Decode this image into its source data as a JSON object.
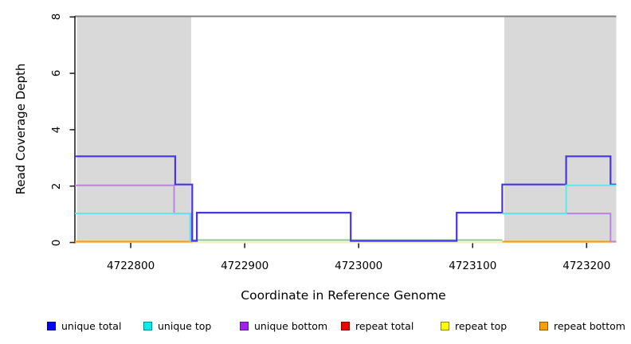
{
  "chart_data": {
    "type": "line",
    "title": "",
    "xlabel": "Coordinate in Reference Genome",
    "ylabel": "Read Coverage Depth",
    "xlim": [
      4722751,
      4723226
    ],
    "ylim": [
      0,
      8
    ],
    "x_ticks": [
      4722800,
      4722900,
      4723000,
      4723100,
      4723200
    ],
    "y_ticks": [
      0,
      2,
      4,
      6,
      8
    ],
    "grid": false,
    "legend_position": "bottom",
    "shaded_repeat_regions": [
      [
        4722751,
        4722853
      ],
      [
        4723126,
        4723226
      ]
    ],
    "shade_color": "#d9d9d9",
    "top_border_color": "#808080",
    "axis_color": "#262626",
    "polylines": [
      {
        "series": "baseline-pale-yellow",
        "color": "#eeeec4",
        "width": 2,
        "dy": 0,
        "steps": [
          [
            4722853,
            0
          ]
        ],
        "end": 4723126
      },
      {
        "series": "baseline-green",
        "color": "#8cc98c",
        "width": 2,
        "dy": -3,
        "steps": [
          [
            4722853,
            0
          ]
        ],
        "end": 4723126
      },
      {
        "series": "repeat bottom",
        "color": "#ff9d15",
        "width": 2.2,
        "dy": -1,
        "steps": [
          [
            4722751,
            0
          ]
        ],
        "end": 4722854
      },
      {
        "series": "repeat bottom",
        "color": "#ff9d15",
        "width": 2.2,
        "dy": -1,
        "steps": [
          [
            4723126,
            0
          ]
        ],
        "end": 4723226
      },
      {
        "series": "unique bottom",
        "color": "#b886e0",
        "width": 2,
        "dy": -1,
        "steps": [
          [
            4722751,
            2
          ],
          [
            4722838,
            1
          ],
          [
            4722853,
            0
          ]
        ],
        "end": 4722853
      },
      {
        "series": "unique bottom",
        "color": "#b886e0",
        "width": 2,
        "dy": -1,
        "steps": [
          [
            4723126,
            1
          ],
          [
            4723221,
            0
          ]
        ],
        "end": 4723226
      },
      {
        "series": "unique total",
        "color": "#4636e3",
        "width": 2.2,
        "dy": -2,
        "steps": [
          [
            4722751,
            3
          ],
          [
            4722839,
            2
          ],
          [
            4722854,
            0
          ],
          [
            4722858,
            1
          ],
          [
            4722993,
            0
          ],
          [
            4723086,
            1
          ],
          [
            4723126,
            2
          ],
          [
            4723182,
            3
          ],
          [
            4723221,
            2
          ]
        ],
        "end": 4723226
      },
      {
        "series": "unique top",
        "color": "#5fe8e8",
        "width": 2,
        "dy": -1,
        "steps": [
          [
            4722751,
            1
          ],
          [
            4722852,
            0
          ]
        ],
        "end": 4722852
      },
      {
        "series": "unique top",
        "color": "#5fe8e8",
        "width": 2,
        "dy": -1,
        "steps": [
          [
            4723126,
            1
          ],
          [
            4723182,
            2
          ]
        ],
        "end": 4723226
      }
    ],
    "legend": [
      {
        "label": "unique total",
        "fill": "#0000ff",
        "border": "#00008b"
      },
      {
        "label": "unique top",
        "fill": "#00eeee",
        "border": "#008b8b"
      },
      {
        "label": "unique bottom",
        "fill": "#a020f0",
        "border": "#551a8b"
      },
      {
        "label": "repeat total",
        "fill": "#ee0000",
        "border": "#8b0000"
      },
      {
        "label": "repeat top",
        "fill": "#ffff00",
        "border": "#8b8b00"
      },
      {
        "label": "repeat bottom",
        "fill": "#ff9d00",
        "border": "#8b5a00"
      }
    ]
  }
}
